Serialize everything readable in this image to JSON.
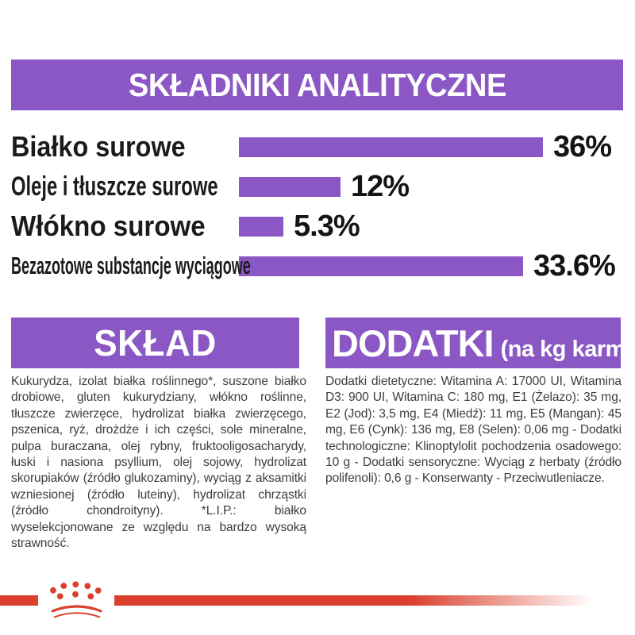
{
  "analytics": {
    "title": "SKŁADNIKI ANALITYCZNE"
  },
  "chart_data": {
    "type": "bar",
    "orientation": "horizontal",
    "title": "SKŁADNIKI ANALITYCZNE",
    "categories": [
      "Białko surowe",
      "Oleje i tłuszcze surowe",
      "Włókno surowe",
      "Bezazotowe substancje wyciągowe"
    ],
    "values": [
      36,
      12,
      5.3,
      33.6
    ],
    "value_labels": [
      "36%",
      "12%",
      "5.3%",
      "33.6%"
    ],
    "unit": "%",
    "xlim": [
      0,
      36
    ],
    "bar_color": "#8a57c4",
    "grid": false,
    "legend": false
  },
  "sklad": {
    "header": "SKŁAD",
    "body": "Kukurydza, izolat białka roślinnego*, suszone białko drobiowe, gluten kukurydziany, włókno roślinne, tłuszcze zwierzęce, hydrolizat białka zwierzęcego, pszenica, ryż, drożdże i ich części, sole mineralne, pulpa buraczana, olej rybny, fruktooligosacharydy, łuski i nasiona psyllium, olej sojowy, hydrolizat skorupiaków (źródło glukozaminy), wyciąg z aksamitki wzniesionej (źródło luteiny), hydrolizat chrząstki (źródło chondroityny). *L.I.P.: białko wyselekcjonowane ze względu na bardzo wysoką strawność."
  },
  "dodatki": {
    "header": "DODATKI",
    "header_suffix": "(na kg karmy)",
    "body": "Dodatki dietetyczne: Witamina A: 17000 UI, Witamina D3: 900 UI, Witamina C: 180 mg, E1 (Żelazo): 35 mg, E2 (Jod): 3,5 mg, E4 (Miedź): 11 mg, E5 (Mangan): 45 mg, E6 (Cynk): 136 mg, E8 (Selen): 0,06 mg - Dodatki technologiczne: Klinoptylolit pochodzenia osadowego: 10 g - Dodatki sensoryczne: Wyciąg z herbaty (źródło polifenoli): 0,6 g - Konserwanty - Przeciwutleniacze."
  },
  "footer": {
    "brand_icon": "royal-canin-crown"
  },
  "colors": {
    "accent_purple": "#8a57c4",
    "brand_red": "#d9412e",
    "label_black": "#1b1b1b",
    "body_gray": "#3d3d3d"
  }
}
